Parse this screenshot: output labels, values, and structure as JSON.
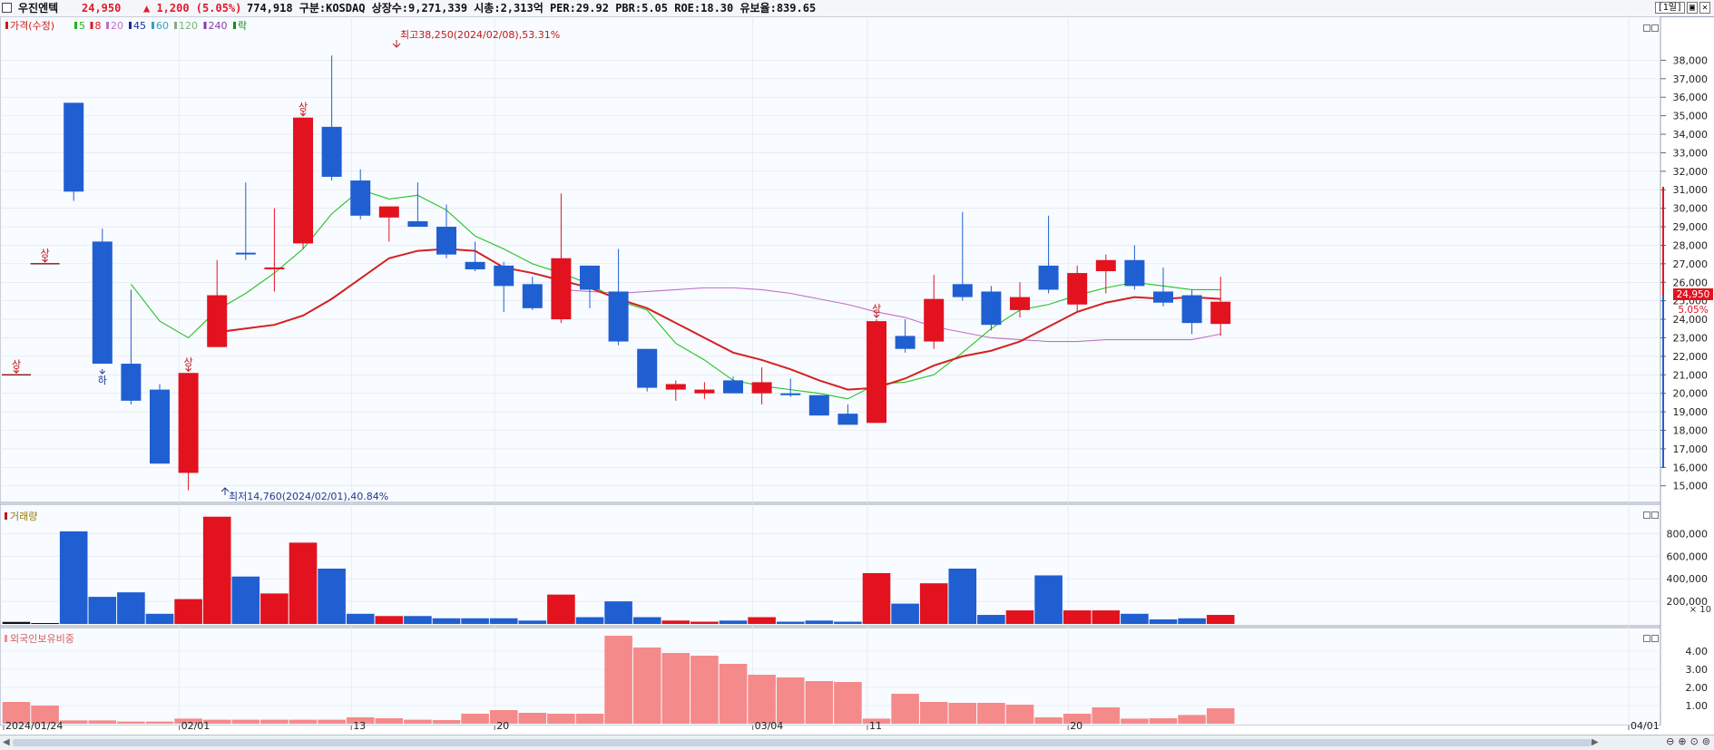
{
  "header": {
    "stock_name": "우진엔텍",
    "price": "24,950",
    "change": "▲ 1,200 (5.05%)",
    "info": "774,918  구분:KOSDAQ 상장수:9,271,339 시총:2,313억 PER:29.92 PBR:5.05 ROE:18.30 유보율:839.65",
    "period_button": "[1일]",
    "restore_button": "▣",
    "close_button": "✕"
  },
  "colors": {
    "up": "#e3121f",
    "down": "#1f5fd1",
    "ma5": "#22c322",
    "ma20": "#d42020",
    "ma60": "#c070c8",
    "foreign_bar": "#f58a8a",
    "grid": "#dfe4ec",
    "bg": "#f8fbff"
  },
  "legend": [
    {
      "label": "가격(수정)",
      "color": "#d01818"
    },
    {
      "label": "5",
      "color": "#22b322"
    },
    {
      "label": "8",
      "color": "#e0192b"
    },
    {
      "label": "20",
      "color": "#c070c8"
    },
    {
      "label": "45",
      "color": "#1a2a9a"
    },
    {
      "label": "60",
      "color": "#3aa0c8"
    },
    {
      "label": "120",
      "color": "#7fb07f"
    },
    {
      "label": "240",
      "color": "#8a3aa8"
    },
    {
      "label": "락",
      "color": "#1a8a1a"
    }
  ],
  "annotations": {
    "high": "최고38,250(2024/02/08),53.31%",
    "low": "최저14,760(2024/02/01),40.84%",
    "upper_limit_mark": "상",
    "lower_limit_mark": "하"
  },
  "price_label": {
    "value": "24,950",
    "pct": "5.05%"
  },
  "volume_panel": {
    "title": "거래량",
    "unit": "× 10"
  },
  "foreign_panel": {
    "title": "외국인보유비중"
  },
  "x_axis_labels": [
    "2024/01/24",
    "02/01",
    "13",
    "20",
    "03/04",
    "11",
    "20",
    "04/01"
  ],
  "price_ticks": [
    "15,000",
    "16,000",
    "17,000",
    "18,000",
    "19,000",
    "20,000",
    "21,000",
    "22,000",
    "23,000",
    "24,000",
    "25,000",
    "26,000",
    "27,000",
    "28,000",
    "29,000",
    "30,000",
    "31,000",
    "32,000",
    "33,000",
    "34,000",
    "35,000",
    "36,000",
    "37,000",
    "38,000"
  ],
  "volume_ticks": [
    "200,000",
    "400,000",
    "600,000",
    "800,000"
  ],
  "foreign_ticks": [
    "1.00",
    "2.00",
    "3.00",
    "4.00"
  ],
  "chart_data": {
    "type": "candlestick",
    "price_range": [
      14300,
      39000
    ],
    "candles": [
      {
        "o": 21000,
        "h": 21000,
        "l": 21000,
        "c": 21000,
        "limit": "상",
        "dir": "up"
      },
      {
        "o": 27000,
        "h": 27000,
        "l": 27000,
        "c": 27000,
        "limit": "상",
        "dir": "up"
      },
      {
        "o": 35700,
        "h": 35700,
        "l": 30400,
        "c": 30900,
        "dir": "down"
      },
      {
        "o": 28200,
        "h": 28900,
        "l": 21600,
        "c": 21600,
        "limit": "하",
        "dir": "down"
      },
      {
        "o": 21600,
        "h": 25600,
        "l": 19400,
        "c": 19600,
        "dir": "down"
      },
      {
        "o": 20200,
        "h": 20500,
        "l": 16200,
        "c": 16200,
        "dir": "down"
      },
      {
        "o": 15700,
        "h": 21100,
        "l": 14760,
        "c": 21100,
        "limit": "상",
        "dir": "up"
      },
      {
        "o": 22500,
        "h": 27200,
        "l": 22500,
        "c": 25300,
        "dir": "up"
      },
      {
        "o": 27600,
        "h": 31400,
        "l": 27200,
        "c": 27600,
        "dir": "down"
      },
      {
        "o": 26800,
        "h": 30000,
        "l": 25500,
        "c": 26800,
        "dir": "up"
      },
      {
        "o": 28100,
        "h": 34900,
        "l": 27800,
        "c": 34900,
        "limit": "상",
        "dir": "up"
      },
      {
        "o": 34400,
        "h": 38250,
        "l": 31500,
        "c": 31700,
        "dir": "down"
      },
      {
        "o": 31500,
        "h": 32100,
        "l": 29400,
        "c": 29600,
        "dir": "down"
      },
      {
        "o": 29500,
        "h": 30100,
        "l": 28200,
        "c": 30100,
        "dir": "up"
      },
      {
        "o": 29300,
        "h": 31400,
        "l": 29000,
        "c": 29000,
        "dir": "down"
      },
      {
        "o": 29000,
        "h": 30200,
        "l": 27300,
        "c": 27500,
        "dir": "down"
      },
      {
        "o": 27100,
        "h": 28200,
        "l": 26600,
        "c": 26700,
        "dir": "down"
      },
      {
        "o": 26900,
        "h": 27100,
        "l": 24400,
        "c": 25800,
        "dir": "down"
      },
      {
        "o": 25900,
        "h": 26300,
        "l": 24500,
        "c": 24600,
        "dir": "down"
      },
      {
        "o": 24000,
        "h": 30800,
        "l": 23800,
        "c": 27300,
        "dir": "up"
      },
      {
        "o": 26900,
        "h": 26900,
        "l": 24600,
        "c": 25600,
        "dir": "down"
      },
      {
        "o": 25500,
        "h": 27800,
        "l": 22600,
        "c": 22800,
        "dir": "down"
      },
      {
        "o": 22400,
        "h": 22400,
        "l": 20100,
        "c": 20300,
        "dir": "down"
      },
      {
        "o": 20200,
        "h": 20700,
        "l": 19600,
        "c": 20500,
        "dir": "up"
      },
      {
        "o": 20000,
        "h": 20600,
        "l": 19700,
        "c": 20200,
        "dir": "up"
      },
      {
        "o": 20700,
        "h": 20900,
        "l": 20100,
        "c": 20000,
        "dir": "down"
      },
      {
        "o": 20000,
        "h": 21400,
        "l": 19400,
        "c": 20600,
        "dir": "up"
      },
      {
        "o": 20000,
        "h": 20800,
        "l": 19800,
        "c": 19900,
        "dir": "down"
      },
      {
        "o": 19900,
        "h": 19900,
        "l": 18800,
        "c": 18800,
        "dir": "down"
      },
      {
        "o": 18900,
        "h": 19400,
        "l": 18300,
        "c": 18300,
        "dir": "down"
      },
      {
        "o": 18400,
        "h": 24000,
        "l": 18400,
        "c": 23900,
        "limit": "상",
        "dir": "up"
      },
      {
        "o": 23100,
        "h": 24000,
        "l": 22200,
        "c": 22400,
        "dir": "down"
      },
      {
        "o": 22800,
        "h": 26400,
        "l": 22400,
        "c": 25100,
        "dir": "up"
      },
      {
        "o": 25900,
        "h": 29800,
        "l": 25000,
        "c": 25200,
        "dir": "down"
      },
      {
        "o": 25500,
        "h": 25800,
        "l": 23400,
        "c": 23700,
        "dir": "down"
      },
      {
        "o": 24500,
        "h": 26000,
        "l": 24100,
        "c": 25200,
        "dir": "up"
      },
      {
        "o": 26900,
        "h": 29600,
        "l": 25400,
        "c": 25600,
        "dir": "down"
      },
      {
        "o": 24800,
        "h": 26900,
        "l": 24400,
        "c": 26500,
        "dir": "up"
      },
      {
        "o": 26600,
        "h": 27500,
        "l": 25400,
        "c": 27200,
        "dir": "up"
      },
      {
        "o": 27200,
        "h": 28000,
        "l": 25600,
        "c": 25800,
        "dir": "down"
      },
      {
        "o": 25500,
        "h": 26800,
        "l": 24700,
        "c": 24900,
        "dir": "down"
      },
      {
        "o": 25300,
        "h": 25600,
        "l": 23200,
        "c": 23800,
        "dir": "down"
      },
      {
        "o": 23750,
        "h": 26300,
        "l": 23100,
        "c": 24950,
        "dir": "up"
      }
    ],
    "ma5": [
      null,
      null,
      null,
      null,
      25900,
      23900,
      23000,
      24500,
      25400,
      26500,
      27800,
      29700,
      31000,
      30500,
      30700,
      29900,
      28500,
      27800,
      27000,
      26500,
      25900,
      25000,
      24500,
      22700,
      21800,
      20700,
      20400,
      20200,
      20000,
      19700,
      20500,
      20600,
      21000,
      22200,
      23500,
      24500,
      24800,
      25300,
      25700,
      26000,
      25800,
      25600,
      25600
    ],
    "ma20": [
      null,
      null,
      null,
      null,
      null,
      null,
      null,
      23300,
      23500,
      23700,
      24200,
      25100,
      26200,
      27300,
      27700,
      27800,
      27700,
      26800,
      26500,
      26100,
      25700,
      25100,
      24600,
      23800,
      23000,
      22200,
      21800,
      21300,
      20700,
      20200,
      20300,
      20800,
      21500,
      22000,
      22300,
      22800,
      23600,
      24400,
      24900,
      25200,
      25100,
      25200,
      25100
    ],
    "ma60": [
      null,
      null,
      null,
      null,
      null,
      null,
      null,
      null,
      null,
      null,
      null,
      null,
      null,
      null,
      null,
      null,
      null,
      null,
      null,
      25600,
      25500,
      25400,
      25500,
      25600,
      25700,
      25700,
      25600,
      25400,
      25100,
      24800,
      24400,
      24100,
      23600,
      23300,
      23000,
      22900,
      22800,
      22800,
      22900,
      22900,
      22900,
      22900,
      23200
    ],
    "volume_range": [
      0,
      980000
    ],
    "volume": [
      18000,
      8000,
      820000,
      240000,
      280000,
      90000,
      220000,
      950000,
      420000,
      270000,
      720000,
      490000,
      90000,
      70000,
      70000,
      50000,
      50000,
      50000,
      30000,
      260000,
      60000,
      200000,
      60000,
      30000,
      20000,
      30000,
      60000,
      20000,
      30000,
      20000,
      450000,
      180000,
      360000,
      490000,
      80000,
      120000,
      430000,
      120000,
      120000,
      90000,
      40000,
      50000,
      80000
    ],
    "foreign_range": [
      0,
      5.0
    ],
    "foreign_pct": [
      1.2,
      1.0,
      0.18,
      0.18,
      0.12,
      0.12,
      0.28,
      0.22,
      0.22,
      0.22,
      0.22,
      0.22,
      0.35,
      0.3,
      0.22,
      0.2,
      0.55,
      0.75,
      0.6,
      0.55,
      0.55,
      4.85,
      4.2,
      3.9,
      3.75,
      3.3,
      2.7,
      2.55,
      2.35,
      2.3,
      0.28,
      1.65,
      1.2,
      1.15,
      1.15,
      1.05,
      0.35,
      0.55,
      0.9,
      0.28,
      0.3,
      0.48,
      0.85
    ]
  }
}
